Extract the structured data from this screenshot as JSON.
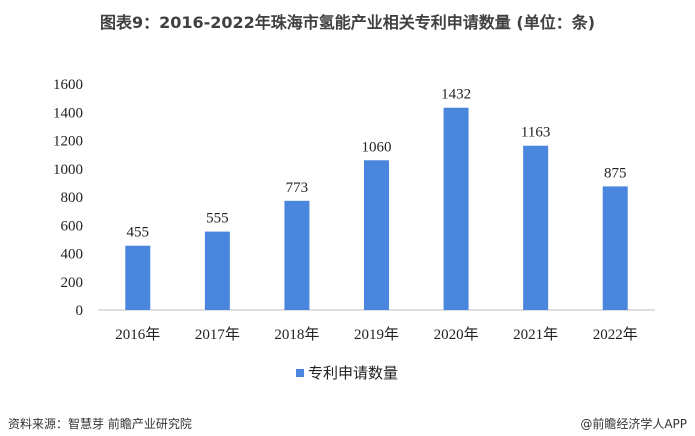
{
  "title": "图表9：2016-2022年珠海市氢能产业相关专利申请数量 (单位：条)",
  "source": "资料来源：智慧芽 前瞻产业研究院",
  "brand": "@前瞻经济学人APP",
  "colors": {
    "bar": "#4A86DD",
    "axis": "#bfbfbf"
  },
  "chart_data": {
    "type": "bar",
    "categories": [
      "2016年",
      "2017年",
      "2018年",
      "2019年",
      "2020年",
      "2021年",
      "2022年"
    ],
    "series": [
      {
        "name": "专利申请数量",
        "values": [
          455,
          555,
          773,
          1060,
          1432,
          1163,
          875
        ]
      }
    ],
    "ylim": [
      0,
      1600
    ],
    "yticks": [
      0,
      200,
      400,
      600,
      800,
      1000,
      1200,
      1400,
      1600
    ],
    "grid": false,
    "legend_position": "bottom",
    "data_labels": true
  }
}
